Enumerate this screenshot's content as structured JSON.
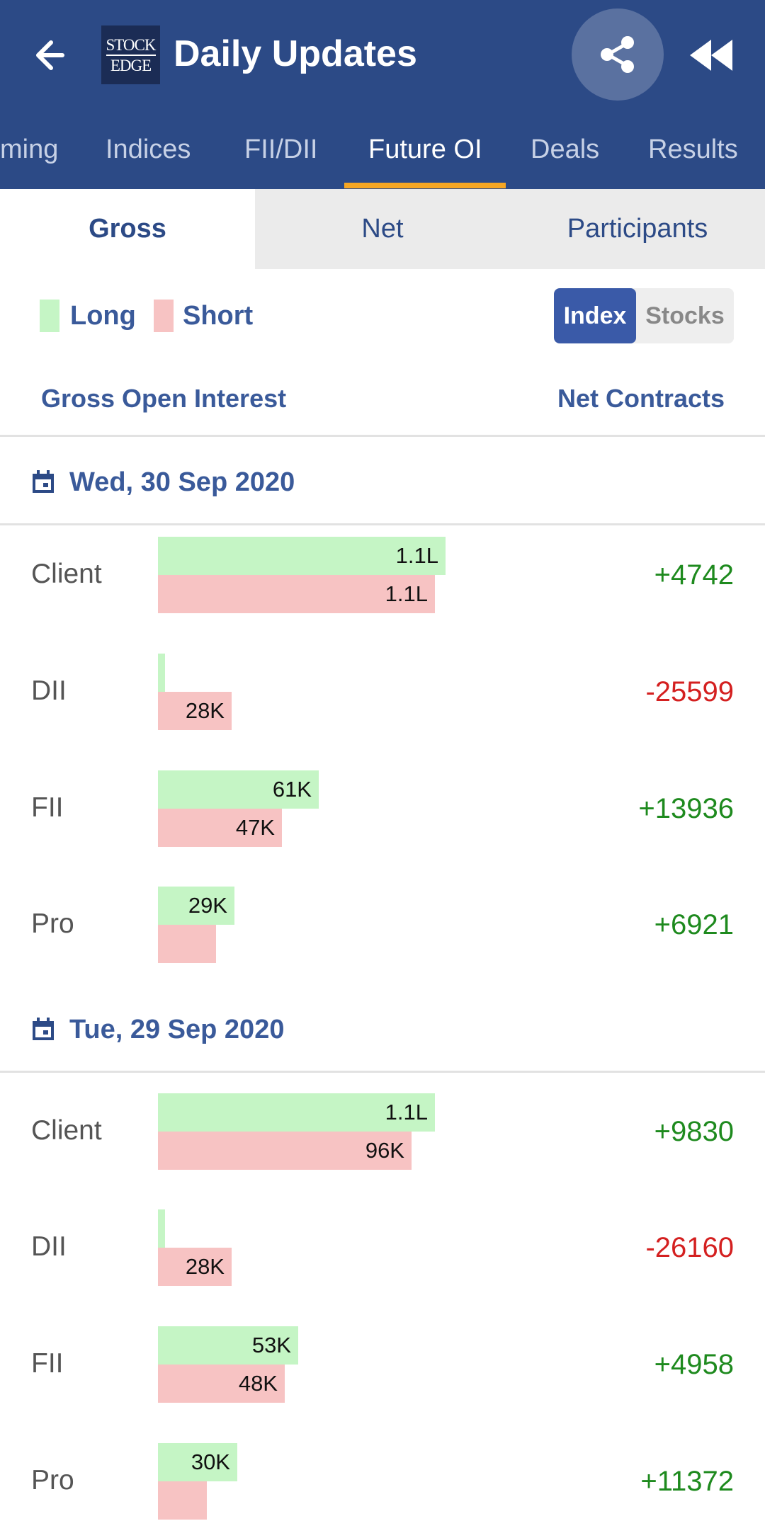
{
  "header": {
    "title": "Daily Updates",
    "logo_top": "STOCK",
    "logo_bottom": "EDGE",
    "bg_color": "#2c4a86"
  },
  "tabs": [
    {
      "label": "ming"
    },
    {
      "label": "Indices"
    },
    {
      "label": "FII/DII"
    },
    {
      "label": "Future OI",
      "active": true
    },
    {
      "label": "Deals"
    },
    {
      "label": "Results"
    }
  ],
  "segments": [
    {
      "label": "Gross",
      "active": true
    },
    {
      "label": "Net"
    },
    {
      "label": "Participants"
    }
  ],
  "legend": {
    "long": "Long",
    "short": "Short",
    "long_color": "#c5f5c5",
    "short_color": "#f7c3c3"
  },
  "toggle": {
    "index": "Index",
    "stocks": "Stocks",
    "selected": "Index"
  },
  "columns": {
    "left": "Gross Open Interest",
    "right": "Net Contracts"
  },
  "days": [
    {
      "date": "Wed, 30 Sep 2020",
      "rows": [
        {
          "participant": "Client",
          "long_label": "1.1L",
          "short_label": "1.1L",
          "long_value": 109000,
          "short_value": 105000,
          "net": "+4742"
        },
        {
          "participant": "DII",
          "long_label": "",
          "short_label": "28K",
          "long_value": 2400,
          "short_value": 28000,
          "net": "-25599"
        },
        {
          "participant": "FII",
          "long_label": "61K",
          "short_label": "47K",
          "long_value": 61000,
          "short_value": 47000,
          "net": "+13936"
        },
        {
          "participant": "Pro",
          "long_label": "29K",
          "short_label": "",
          "long_value": 29000,
          "short_value": 22000,
          "net": "+6921"
        }
      ]
    },
    {
      "date": "Tue, 29 Sep 2020",
      "rows": [
        {
          "participant": "Client",
          "long_label": "1.1L",
          "short_label": "96K",
          "long_value": 105000,
          "short_value": 96000,
          "net": "+9830"
        },
        {
          "participant": "DII",
          "long_label": "",
          "short_label": "28K",
          "long_value": 2000,
          "short_value": 28000,
          "net": "-26160"
        },
        {
          "participant": "FII",
          "long_label": "53K",
          "short_label": "48K",
          "long_value": 53000,
          "short_value": 48000,
          "net": "+4958"
        },
        {
          "participant": "Pro",
          "long_label": "30K",
          "short_label": "",
          "long_value": 30000,
          "short_value": 18500,
          "net": "+11372"
        }
      ]
    }
  ]
}
